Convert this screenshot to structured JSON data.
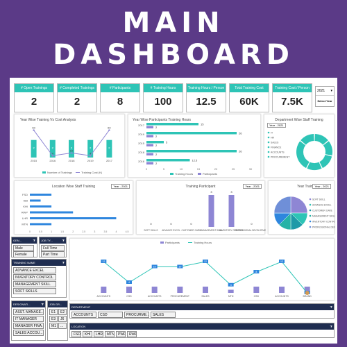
{
  "title": {
    "line1": "MAIN",
    "line2": "DASHBOARD"
  },
  "kpis": [
    {
      "label": "# Open Trainings",
      "value": "2"
    },
    {
      "label": "# Completed Trainings",
      "value": "2"
    },
    {
      "label": "# Participants",
      "value": "8"
    },
    {
      "label": "# Training Hours",
      "value": "100"
    },
    {
      "label": "Training Hours / Person",
      "value": "12.5"
    },
    {
      "label": "Total Training Cost",
      "value": "60K"
    },
    {
      "label": "Training Cost / Person",
      "value": "7.5K"
    }
  ],
  "year_select": {
    "value": "2021",
    "button": "Select Year"
  },
  "chart_data": [
    {
      "type": "bar",
      "title": "Year Wise Training Vs Cost Analysis",
      "categories": [
        "2015",
        "2016",
        "2018",
        "2019",
        "2017"
      ],
      "series": [
        {
          "name": "Number of Trainings",
          "values": [
            2,
            2,
            2,
            2,
            2
          ]
        },
        {
          "name": "Training Cost (K)",
          "values": [
            60,
            4,
            10,
            4,
            60
          ]
        }
      ]
    },
    {
      "type": "bar",
      "title": "Year Wise Participants Training Hours",
      "categories": [
        "2017",
        "2019",
        "2015",
        "2018",
        "2016"
      ],
      "series": [
        {
          "name": "Participants",
          "values": [
            2,
            2,
            2,
            2,
            2
          ]
        },
        {
          "name": "Training Hours",
          "values": [
            15,
            26,
            5,
            26,
            12.5
          ]
        }
      ],
      "xlim": [
        0,
        30
      ]
    },
    {
      "type": "pie",
      "title": "Department Wise Staff Training",
      "categories": [
        "IT",
        "HR",
        "SALES",
        "FINANCE",
        "ACCOUNTS",
        "PROCUREMENT"
      ],
      "values": [
        1,
        1,
        1,
        1,
        2,
        1
      ]
    },
    {
      "type": "bar",
      "title": "Location Wise Staff Training",
      "categories": [
        "FSD",
        "ISB",
        "KHI",
        "RWP",
        "LHR",
        "MTN"
      ],
      "values": [
        1.0,
        0.5,
        1.0,
        2.0,
        4.0,
        1.0
      ],
      "xlim": [
        0,
        4.5
      ]
    },
    {
      "type": "bar",
      "title": "Training Participant",
      "categories": [
        "SOFT SKILLS",
        "ADVANCE EXCEL",
        "CUSTOMER CARE",
        "MANAGEMENT SKILL",
        "INVENTORY CONTROL",
        "PROFESSIONAL DEVELOPMENT"
      ],
      "values": [
        0,
        0,
        0,
        3,
        3,
        0
      ]
    },
    {
      "type": "pie",
      "title": "Year Trainings",
      "categories": [
        "SOFT SKILLS",
        "ADVANCE EXCEL",
        "CUSTOMER CARE",
        "MANAGEMENT SKILL",
        "INVENTORY CONTROL",
        "PROFESSIONAL DEVELOPMENT"
      ],
      "values": [
        2,
        1,
        1,
        1,
        1,
        2
      ]
    },
    {
      "type": "line",
      "categories": [
        "ACCOUNTS",
        "CSD",
        "ACCOUNTS",
        "PROCUREMENT",
        "SALES",
        "MTN",
        "CSD",
        "ACCOUNTS",
        "BRAND"
      ],
      "series": [
        {
          "name": "Participants",
          "values": [
            2,
            2,
            2,
            2,
            2,
            1,
            2,
            2,
            2
          ]
        },
        {
          "name": "Training Hours",
          "values": [
            12,
            4,
            10,
            10,
            12,
            3,
            8,
            12,
            0
          ]
        }
      ]
    }
  ],
  "yr_tags": [
    "Year - 2021",
    "Year - 2021",
    "Year - 2021",
    "Year - 2021"
  ],
  "legend1": [
    "Number of Trainings",
    "Training Cost (K)"
  ],
  "legend2": [
    "Participants",
    "Training Hours"
  ],
  "donut_legend": [
    "IT",
    "HR",
    "SALES",
    "FINANCE",
    "ACCOUNTS",
    "PROCUREMENT"
  ],
  "pie_legend": [
    "SOFT SKILL",
    "ADVANCE EXCEL",
    "CUSTOMER CARE",
    "MANAGEMENT SKILL",
    "INVENTORY CONTROL",
    "PROFESSIONAL DEVELOPMENT"
  ],
  "slicers": {
    "gender": {
      "title": "GEN...",
      "items": [
        "Male",
        "Female"
      ]
    },
    "jobtype": {
      "title": "JOB TY...",
      "items": [
        "Full Time",
        "Part Time"
      ]
    },
    "training": {
      "title": "TRAINING NAME",
      "items": [
        "ADVANCE EXCEL",
        "INVENTORY CONTROL",
        "MANAGEMENT SKILL",
        "SOFT SKILLS"
      ]
    },
    "designation": {
      "title": "DESIGNATI...",
      "items": [
        "ASST. MANAGE...",
        "IT MANAGER",
        "MANAGER FINA...",
        "SALES ACCOU..."
      ]
    },
    "grade": {
      "title": "JOB GR...",
      "items": [
        "E1",
        "E2",
        "E3",
        "J6",
        "M1",
        "..."
      ]
    },
    "department": {
      "title": "DEPARTMENT",
      "items": [
        "ACCOUNTS",
        "CSD",
        "PROCURME...",
        "SALES"
      ]
    },
    "location": {
      "title": "LOCATION",
      "items": [
        "FSD",
        "KHI",
        "LHR",
        "MTN",
        "PWR",
        "RWP"
      ]
    }
  }
}
